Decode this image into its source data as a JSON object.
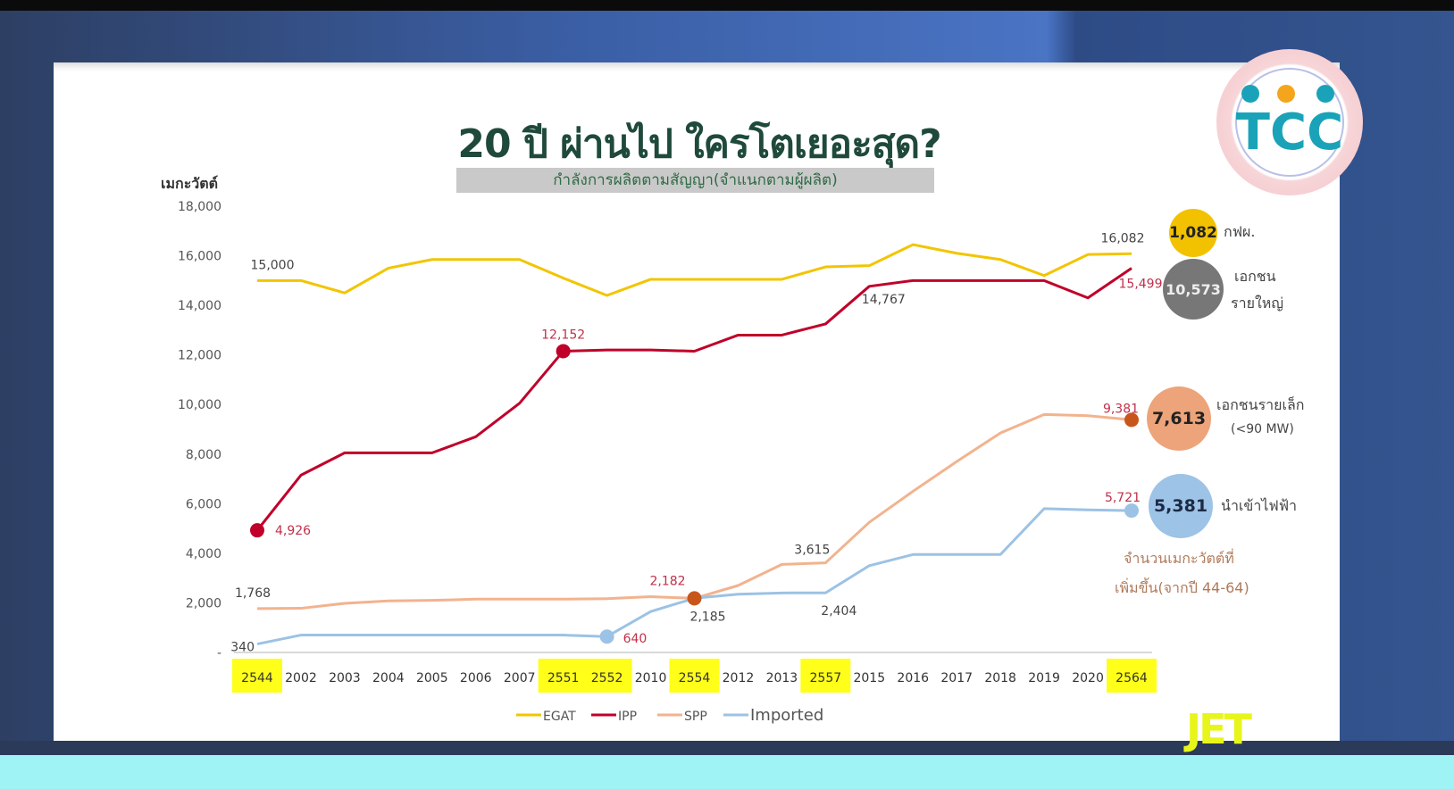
{
  "title": "20 ปี ผ่านไป ใครโตเยอะสุด?",
  "subtitle": "กำลังการผลิตตามสัญญา(จำแนกตามผู้ผลิต)",
  "watermark": "JET",
  "logo_text": "TCC",
  "summary": {
    "bubbles": [
      {
        "value": "1,082",
        "label": "กฟผ.",
        "color": "#f2c200"
      },
      {
        "value": "10,573",
        "label_line1": "เอกชน",
        "label_line2": "รายใหญ่",
        "color": "#777777"
      },
      {
        "value": "7,613",
        "label_line1": "เอกชนรายเล็ก",
        "label_line2": "(<90 MW)",
        "color": "#eda47a"
      },
      {
        "value": "5,381",
        "label": "นำเข้าไฟฟ้า",
        "color": "#9dc3e6"
      }
    ],
    "note_line1": "จำนวนเมกะวัตต์ที่",
    "note_line2": "เพิ่มขึ้น(จากปี 44-64)"
  },
  "chart_data": {
    "type": "line",
    "title": "20 ปี ผ่านไป ใครโตเยอะสุด?",
    "subtitle": "กำลังการผลิตตามสัญญา(จำแนกตามผู้ผลิต)",
    "ylabel": "เมกะวัตต์",
    "xlabel": "",
    "ylim": [
      0,
      18000
    ],
    "yticks": [
      "-",
      "2,000",
      "4,000",
      "6,000",
      "8,000",
      "10,000",
      "12,000",
      "14,000",
      "16,000",
      "18,000"
    ],
    "grid": false,
    "legend": "bottom",
    "categories": [
      "2544",
      "2002",
      "2003",
      "2004",
      "2005",
      "2006",
      "2007",
      "2551",
      "2552",
      "2010",
      "2554",
      "2012",
      "2013",
      "2557",
      "2015",
      "2016",
      "2017",
      "2018",
      "2019",
      "2020",
      "2564"
    ],
    "highlighted_categories": [
      "2544",
      "2551",
      "2552",
      "2554",
      "2557",
      "2564"
    ],
    "series": [
      {
        "name": "EGAT",
        "color": "#f2c500",
        "values": [
          15000,
          15000,
          14500,
          15500,
          15850,
          15850,
          15850,
          15100,
          14400,
          15050,
          15050,
          15050,
          15050,
          15550,
          15600,
          16450,
          16100,
          15850,
          15200,
          16050,
          16082
        ]
      },
      {
        "name": "IPP",
        "color": "#c0002a",
        "values": [
          4926,
          7150,
          8050,
          8050,
          8050,
          8700,
          10050,
          12152,
          12200,
          12200,
          12150,
          12800,
          12800,
          13250,
          14767,
          15000,
          15000,
          15000,
          15000,
          14300,
          15499
        ]
      },
      {
        "name": "SPP",
        "color": "#f2b38e",
        "values": [
          1768,
          1780,
          1980,
          2080,
          2100,
          2150,
          2150,
          2150,
          2170,
          2250,
          2182,
          2700,
          3550,
          3615,
          5250,
          6500,
          7700,
          8850,
          9600,
          9550,
          9381
        ]
      },
      {
        "name": "Imported",
        "color": "#9cc2e5",
        "values": [
          340,
          700,
          700,
          700,
          700,
          700,
          700,
          700,
          640,
          1650,
          2185,
          2350,
          2400,
          2404,
          3500,
          3950,
          3950,
          3950,
          5800,
          5750,
          5721
        ]
      }
    ],
    "annotations": [
      {
        "series": "EGAT",
        "category": "2544",
        "text": "15,000",
        "color": "#444444"
      },
      {
        "series": "EGAT",
        "category": "2564",
        "text": "16,082",
        "color": "#444444"
      },
      {
        "series": "IPP",
        "category": "2544",
        "text": "4,926",
        "color": "#c0304a",
        "marker": true
      },
      {
        "series": "IPP",
        "category": "2551",
        "text": "12,152",
        "color": "#c0304a",
        "marker": true
      },
      {
        "series": "IPP",
        "category": "2015",
        "text": "14,767",
        "color": "#444444"
      },
      {
        "series": "IPP",
        "category": "2564",
        "text": "15,499",
        "color": "#c0304a"
      },
      {
        "series": "SPP",
        "category": "2544",
        "text": "1,768",
        "color": "#444444"
      },
      {
        "series": "SPP",
        "category": "2554",
        "text": "2,182",
        "color": "#c0304a",
        "marker": true
      },
      {
        "series": "SPP",
        "category": "2557",
        "text": "3,615",
        "color": "#444444"
      },
      {
        "series": "SPP",
        "category": "2564",
        "text": "9,381",
        "color": "#c0304a",
        "marker": true
      },
      {
        "series": "Imported",
        "category": "2544",
        "text": "340",
        "color": "#444444"
      },
      {
        "series": "Imported",
        "category": "2552",
        "text": "640",
        "color": "#c0304a",
        "marker": true
      },
      {
        "series": "Imported",
        "category": "2554",
        "text": "2,185",
        "color": "#444444"
      },
      {
        "series": "Imported",
        "category": "2557",
        "text": "2,404",
        "color": "#444444"
      },
      {
        "series": "Imported",
        "category": "2564",
        "text": "5,721",
        "color": "#c0304a",
        "marker": true
      }
    ]
  }
}
